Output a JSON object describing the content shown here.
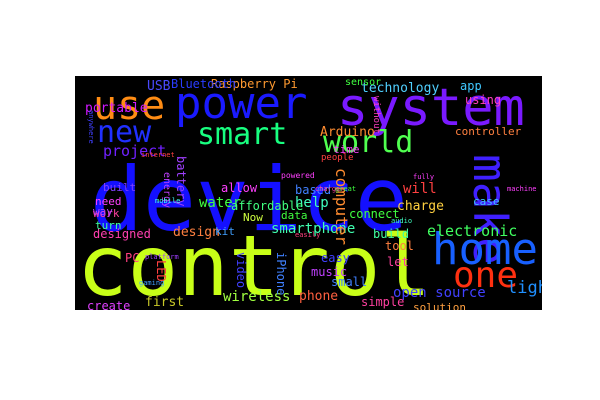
{
  "wordcloud": {
    "background": "#000000",
    "words": [
      {
        "text": "device",
        "color": "#1410ff"
      },
      {
        "text": "control",
        "color": "#c8ff18"
      },
      {
        "text": "power",
        "color": "#1a1aff"
      },
      {
        "text": "system",
        "color": "#7a1aff"
      },
      {
        "text": "use",
        "color": "#ff8c14"
      },
      {
        "text": "smart",
        "color": "#18ff80"
      },
      {
        "text": "world",
        "color": "#50ff50"
      },
      {
        "text": "make",
        "color": "#4020ff"
      },
      {
        "text": "home",
        "color": "#1860ff"
      },
      {
        "text": "one",
        "color": "#ff3010"
      },
      {
        "text": "new",
        "color": "#2030ff"
      },
      {
        "text": "light",
        "color": "#2090ff"
      },
      {
        "text": "project",
        "color": "#7020ff"
      },
      {
        "text": "smartphone",
        "color": "#40ffb0"
      },
      {
        "text": "technology",
        "color": "#50d0ff"
      },
      {
        "text": "computer",
        "color": "#ff8c30"
      },
      {
        "text": "electronic",
        "color": "#40ff60"
      },
      {
        "text": "Arduino",
        "color": "#ff8c30"
      },
      {
        "text": "open source",
        "color": "#4040ff"
      },
      {
        "text": "Raspberry Pi",
        "color": "#ff9a30"
      },
      {
        "text": "Bluetooth",
        "color": "#2a3cff"
      },
      {
        "text": "USB",
        "color": "#4a4aff"
      },
      {
        "text": "portable",
        "color": "#d01aff"
      },
      {
        "text": "app",
        "color": "#40c8ff"
      },
      {
        "text": "using",
        "color": "#ff40c0"
      },
      {
        "text": "designed",
        "color": "#ff40b0"
      },
      {
        "text": "design",
        "color": "#ff8040"
      },
      {
        "text": "wireless",
        "color": "#a0ff40"
      },
      {
        "text": "phone",
        "color": "#ff6040"
      },
      {
        "text": "first",
        "color": "#c8c828"
      },
      {
        "text": "create",
        "color": "#e040ff"
      },
      {
        "text": "water",
        "color": "#40ff40"
      },
      {
        "text": "help",
        "color": "#40ffc0"
      },
      {
        "text": "will",
        "color": "#ff4040"
      },
      {
        "text": "charge",
        "color": "#ffd040"
      },
      {
        "text": "built",
        "color": "#8040ff"
      },
      {
        "text": "need",
        "color": "#ff40ff"
      },
      {
        "text": "work",
        "color": "#ff40a0"
      },
      {
        "text": "turn",
        "color": "#40ffa0"
      },
      {
        "text": "way",
        "color": "#c040ff"
      },
      {
        "text": "PC",
        "color": "#ff4080"
      },
      {
        "text": "battery",
        "color": "#a040ff"
      },
      {
        "text": "affordable",
        "color": "#40ff80"
      },
      {
        "text": "allow",
        "color": "#ff40ff"
      },
      {
        "text": "based",
        "color": "#4080ff"
      },
      {
        "text": "data",
        "color": "#40ff40"
      },
      {
        "text": "Now",
        "color": "#d0ff40"
      },
      {
        "text": "kit",
        "color": "#40a0ff"
      },
      {
        "text": "video",
        "color": "#4040ff"
      },
      {
        "text": "music",
        "color": "#c040ff"
      },
      {
        "text": "easy",
        "color": "#4040ff"
      },
      {
        "text": "small",
        "color": "#4080ff"
      },
      {
        "text": "build",
        "color": "#40ffa0"
      },
      {
        "text": "tool",
        "color": "#ff8040"
      },
      {
        "text": "let",
        "color": "#ff40a0"
      },
      {
        "text": "simple",
        "color": "#ff40a0"
      },
      {
        "text": "solution",
        "color": "#ffa040"
      },
      {
        "text": "connect",
        "color": "#40ff40"
      },
      {
        "text": "sensor",
        "color": "#40ff40"
      },
      {
        "text": "time",
        "color": "#ff40ff"
      },
      {
        "text": "controller",
        "color": "#ff8040"
      },
      {
        "text": "LED",
        "color": "#ff4040"
      },
      {
        "text": "iPhone",
        "color": "#4080ff"
      },
      {
        "text": "energy",
        "color": "#c040ff"
      },
      {
        "text": "case",
        "color": "#40c0ff"
      },
      {
        "text": "people",
        "color": "#ff4040"
      },
      {
        "text": "powered",
        "color": "#ff40ff"
      },
      {
        "text": "mobile",
        "color": "#40ffff"
      },
      {
        "text": "platform",
        "color": "#a040ff"
      },
      {
        "text": "gaming",
        "color": "#40a0ff"
      },
      {
        "text": "without",
        "color": "#ff40c0"
      },
      {
        "text": "internet",
        "color": "#ff4040"
      },
      {
        "text": "machine",
        "color": "#ff40ff"
      },
      {
        "text": "great",
        "color": "#40ff40"
      },
      {
        "text": "easily",
        "color": "#ff4080"
      },
      {
        "text": "anywhere",
        "color": "#4040ff"
      },
      {
        "text": "fully",
        "color": "#ff40ff"
      },
      {
        "text": "charger",
        "color": "#ff40a0"
      },
      {
        "text": "audio",
        "color": "#40ffc0"
      }
    ]
  }
}
